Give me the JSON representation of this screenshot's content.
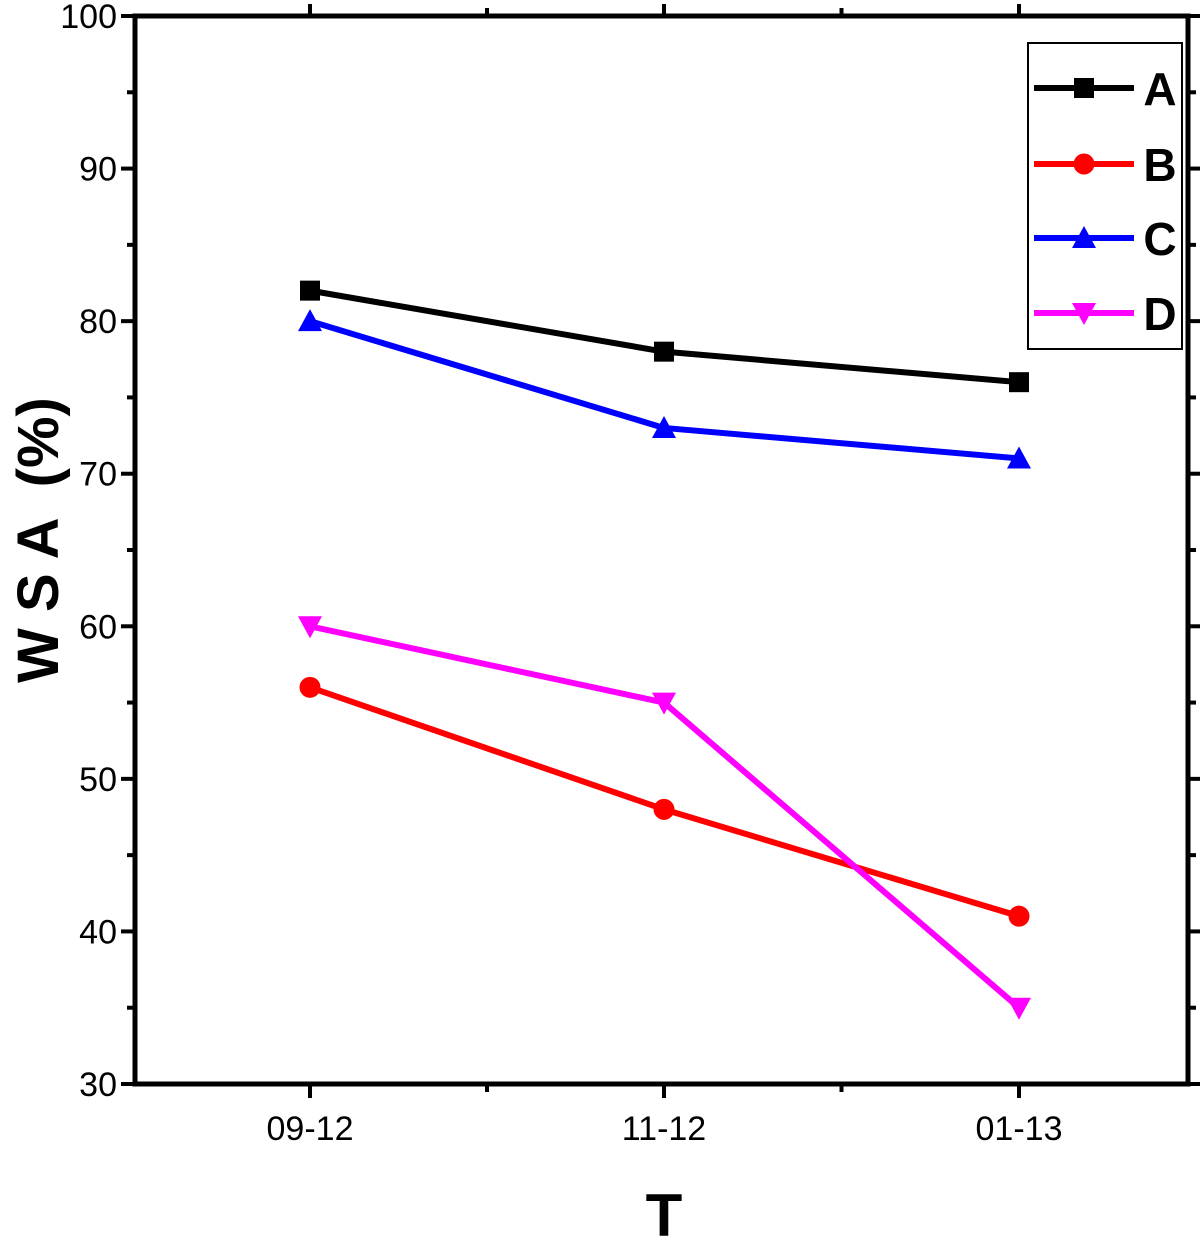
{
  "chart_data": {
    "type": "line",
    "xlabel": "T",
    "ylabel": "W S A  (%)",
    "categories": [
      "09-12",
      "11-12",
      "01-13"
    ],
    "ylim": [
      30,
      100
    ],
    "yticks": [
      30,
      40,
      50,
      60,
      70,
      80,
      90,
      100
    ],
    "grid": false,
    "legend_position": "top-right",
    "series": [
      {
        "name": "A",
        "color": "#000000",
        "marker": "square",
        "values": [
          82,
          78,
          76
        ]
      },
      {
        "name": "B",
        "color": "#ff0000",
        "marker": "circle",
        "values": [
          56,
          48,
          41
        ]
      },
      {
        "name": "C",
        "color": "#0000ff",
        "marker": "triangle-up",
        "values": [
          80,
          73,
          71
        ]
      },
      {
        "name": "D",
        "color": "#ff00ff",
        "marker": "triangle-down",
        "values": [
          60,
          55,
          35
        ]
      }
    ]
  }
}
